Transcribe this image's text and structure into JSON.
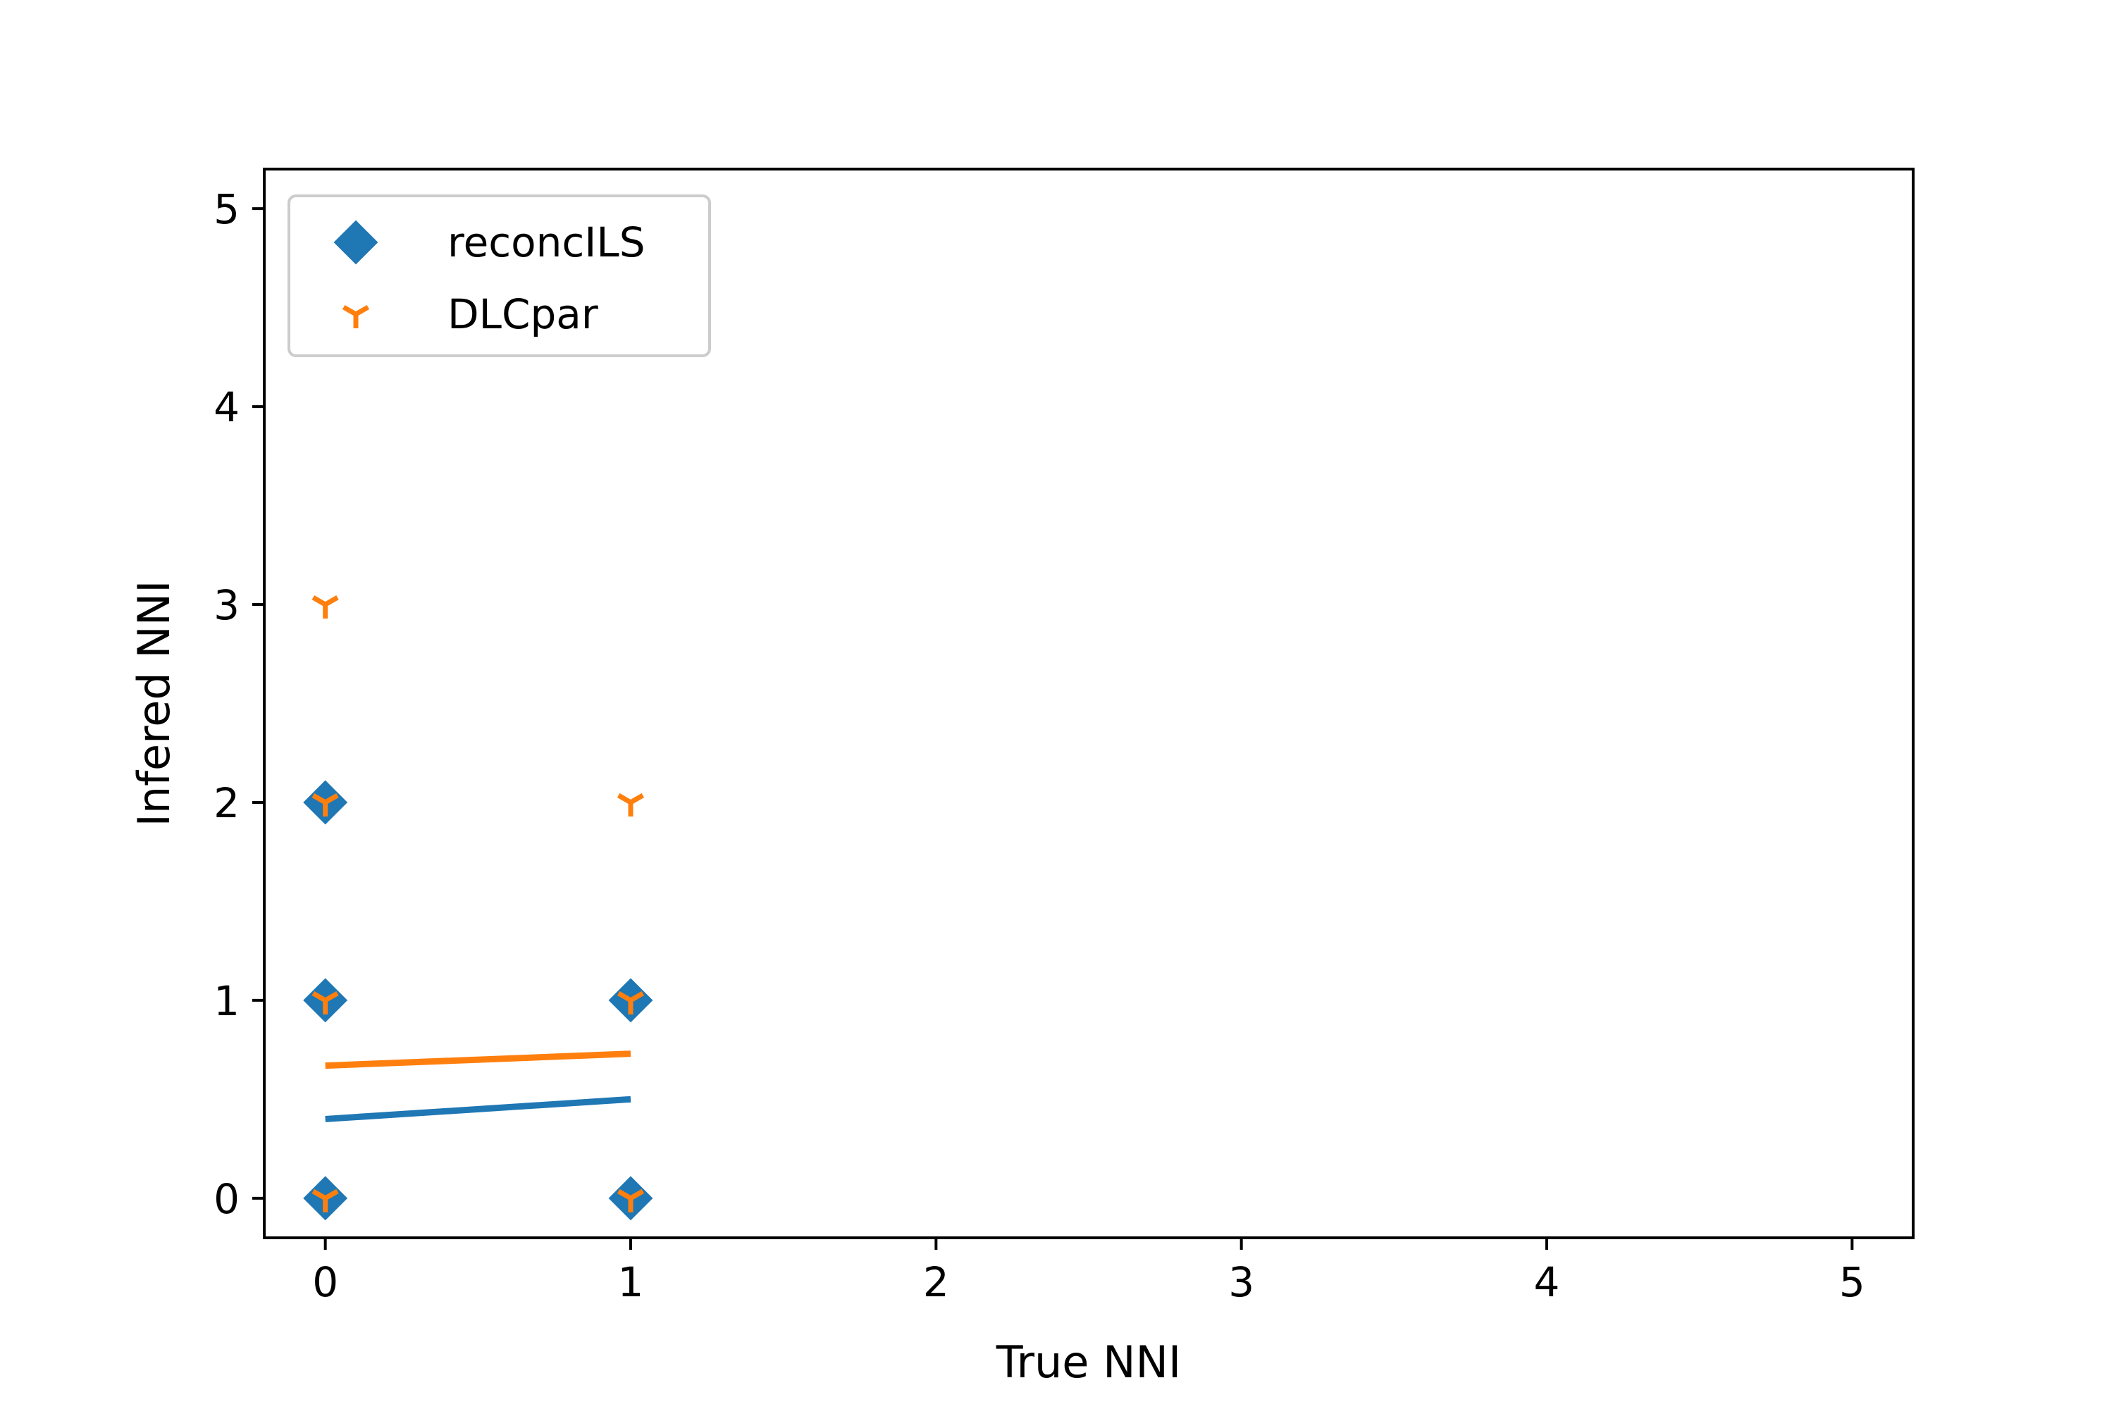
{
  "chart_data": {
    "type": "scatter",
    "xlabel": "True NNI",
    "ylabel": "Infered NNI",
    "xlim": [
      -0.2,
      5.2
    ],
    "ylim": [
      -0.2,
      5.2
    ],
    "xticks": [
      0,
      1,
      2,
      3,
      4,
      5
    ],
    "yticks": [
      0,
      1,
      2,
      3,
      4,
      5
    ],
    "grid": false,
    "legend_position": "upper-left",
    "series": [
      {
        "name": "reconcILS",
        "marker": "diamond",
        "color": "#1f77b4",
        "points": [
          [
            0,
            0
          ],
          [
            0,
            1
          ],
          [
            0,
            2
          ],
          [
            1,
            0
          ],
          [
            1,
            1
          ]
        ],
        "trend": [
          [
            0,
            0.4
          ],
          [
            1,
            0.5
          ]
        ]
      },
      {
        "name": "DLCpar",
        "marker": "tri-down",
        "color": "#ff7f0e",
        "points": [
          [
            0,
            0
          ],
          [
            0,
            1
          ],
          [
            0,
            2
          ],
          [
            0,
            3
          ],
          [
            1,
            0
          ],
          [
            1,
            1
          ],
          [
            1,
            2
          ]
        ],
        "trend": [
          [
            0,
            0.67
          ],
          [
            1,
            0.73
          ]
        ]
      }
    ]
  }
}
